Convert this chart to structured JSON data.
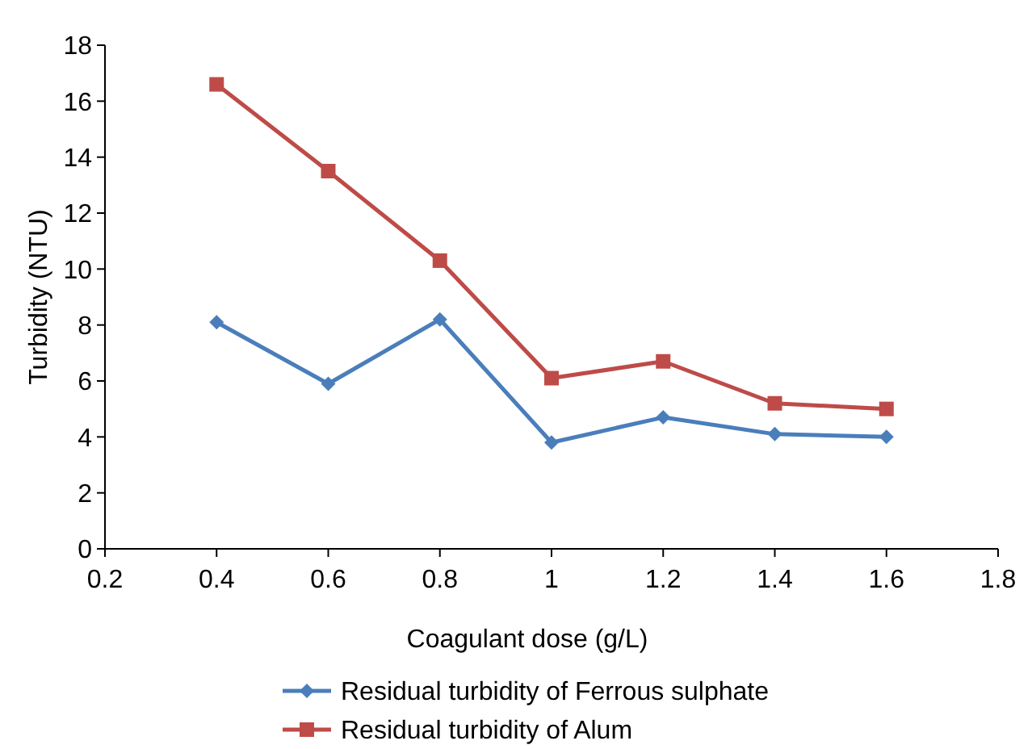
{
  "chart_data": {
    "type": "line",
    "xlabel": "Coagulant dose (g/L)",
    "ylabel": "Turbidity (NTU)",
    "x": [
      0.4,
      0.6,
      0.8,
      1,
      1.2,
      1.4,
      1.6
    ],
    "series": [
      {
        "name": "Residual turbidity of Ferrous sulphate",
        "color": "#4a7ebb",
        "marker": "diamond",
        "values": [
          8.1,
          5.9,
          8.2,
          3.8,
          4.7,
          4.1,
          4.0
        ]
      },
      {
        "name": "Residual turbidity of Alum",
        "color": "#be4b48",
        "marker": "square",
        "values": [
          16.6,
          13.5,
          10.3,
          6.1,
          6.7,
          5.2,
          5.0
        ]
      }
    ],
    "xlim": [
      0.2,
      1.8
    ],
    "xticks": [
      0.2,
      0.4,
      0.6,
      0.8,
      1,
      1.2,
      1.4,
      1.6,
      1.8
    ],
    "ylim": [
      0,
      18
    ],
    "yticks": [
      0,
      2,
      4,
      6,
      8,
      10,
      12,
      14,
      16,
      18
    ],
    "grid": false,
    "legend": "bottom",
    "line_style": "solid"
  }
}
